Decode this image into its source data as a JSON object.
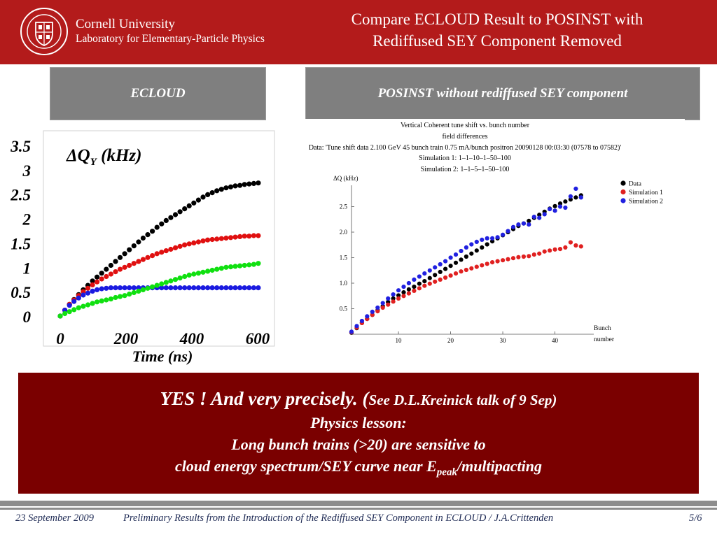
{
  "header": {
    "university": "Cornell University",
    "laboratory": "Laboratory for Elementary-Particle Physics",
    "title_line1": "Compare ECLOUD Result to POSINST with",
    "title_line2": "Rediffused SEY Component Removed",
    "brand_color": "#b31b1b"
  },
  "panels": {
    "left_label": "ECLOUD",
    "right_label": "POSINST without  rediffused SEY component"
  },
  "conclusion": {
    "line1_main": "YES !     And very precisely. (",
    "line1_ref": "See D.L.Kreinick talk of 9 Sep)",
    "line2": "Physics lesson:",
    "line3": "Long bunch trains (>20) are  sensitive to",
    "line4_pre": "cloud energy spectrum/SEY curve near E",
    "line4_sub": "peak",
    "line4_post": "/multipacting",
    "bg_color": "#7a0000"
  },
  "footer": {
    "date": "23 September 2009",
    "center": "Preliminary Results from the Introduction of the Rediffused SEY Component in ECLOUD / J.A.Crittenden",
    "page": "5/6"
  },
  "chart_data": [
    {
      "type": "scatter",
      "title": "",
      "ylabel": "ΔQ",
      "ylabel_sub": "Y",
      "ylabel_units": " (kHz)",
      "xlabel": "Time (ns)",
      "xlim": [
        0,
        610
      ],
      "ylim": [
        0,
        3.6
      ],
      "xticks": [
        0,
        200,
        400,
        600
      ],
      "yticks": [
        0,
        0.5,
        1,
        1.5,
        2,
        2.5,
        3,
        3.5
      ],
      "ytick_labels": [
        "0",
        "0.5",
        "1",
        "1.5",
        "2",
        "2.5",
        "3",
        "3.5"
      ],
      "series": [
        {
          "color": "#000000",
          "x": [
            0,
            14,
            28,
            42,
            56,
            70,
            84,
            98,
            112,
            126,
            140,
            154,
            168,
            182,
            196,
            210,
            224,
            238,
            252,
            266,
            280,
            294,
            308,
            322,
            336,
            350,
            364,
            378,
            392,
            406,
            420,
            434,
            448,
            462,
            476,
            490,
            504,
            518,
            532,
            546,
            560,
            574,
            588,
            602
          ],
          "y": [
            0,
            0.12,
            0.24,
            0.34,
            0.44,
            0.54,
            0.63,
            0.72,
            0.8,
            0.88,
            0.96,
            1.04,
            1.12,
            1.2,
            1.28,
            1.36,
            1.44,
            1.52,
            1.6,
            1.67,
            1.74,
            1.82,
            1.89,
            1.96,
            2.02,
            2.08,
            2.14,
            2.2,
            2.26,
            2.32,
            2.38,
            2.44,
            2.49,
            2.53,
            2.57,
            2.6,
            2.63,
            2.65,
            2.67,
            2.68,
            2.7,
            2.71,
            2.72,
            2.73
          ]
        },
        {
          "color": "#e01010",
          "x": [
            0,
            14,
            28,
            42,
            56,
            70,
            84,
            98,
            112,
            126,
            140,
            154,
            168,
            182,
            196,
            210,
            224,
            238,
            252,
            266,
            280,
            294,
            308,
            322,
            336,
            350,
            364,
            378,
            392,
            406,
            420,
            434,
            448,
            462,
            476,
            490,
            504,
            518,
            532,
            546,
            560,
            574,
            588,
            602
          ],
          "y": [
            0,
            0.12,
            0.24,
            0.33,
            0.42,
            0.5,
            0.57,
            0.64,
            0.7,
            0.76,
            0.81,
            0.86,
            0.91,
            0.96,
            1.0,
            1.04,
            1.08,
            1.12,
            1.16,
            1.2,
            1.24,
            1.28,
            1.31,
            1.34,
            1.37,
            1.4,
            1.43,
            1.46,
            1.48,
            1.5,
            1.52,
            1.54,
            1.56,
            1.57,
            1.58,
            1.59,
            1.6,
            1.61,
            1.62,
            1.63,
            1.64,
            1.64,
            1.65,
            1.65
          ]
        },
        {
          "color": "#1a1ae0",
          "x": [
            0,
            14,
            28,
            42,
            56,
            70,
            84,
            98,
            112,
            126,
            140,
            154,
            168,
            182,
            196,
            210,
            224,
            238,
            252,
            266,
            280,
            294,
            308,
            322,
            336,
            350,
            364,
            378,
            392,
            406,
            420,
            434,
            448,
            462,
            476,
            490,
            504,
            518,
            532,
            546,
            560,
            574,
            588,
            602
          ],
          "y": [
            0,
            0.12,
            0.22,
            0.3,
            0.37,
            0.43,
            0.47,
            0.51,
            0.54,
            0.56,
            0.57,
            0.58,
            0.58,
            0.58,
            0.58,
            0.58,
            0.58,
            0.58,
            0.58,
            0.58,
            0.58,
            0.58,
            0.58,
            0.58,
            0.58,
            0.58,
            0.58,
            0.58,
            0.58,
            0.58,
            0.58,
            0.58,
            0.58,
            0.58,
            0.58,
            0.58,
            0.58,
            0.58,
            0.58,
            0.58,
            0.58,
            0.58,
            0.58,
            0.58
          ]
        },
        {
          "color": "#10e010",
          "x": [
            0,
            14,
            28,
            42,
            56,
            70,
            84,
            98,
            112,
            126,
            140,
            154,
            168,
            182,
            196,
            210,
            224,
            238,
            252,
            266,
            280,
            294,
            308,
            322,
            336,
            350,
            364,
            378,
            392,
            406,
            420,
            434,
            448,
            462,
            476,
            490,
            504,
            518,
            532,
            546,
            560,
            574,
            588,
            602
          ],
          "y": [
            0,
            0.05,
            0.09,
            0.13,
            0.17,
            0.2,
            0.23,
            0.26,
            0.29,
            0.31,
            0.33,
            0.35,
            0.38,
            0.4,
            0.42,
            0.45,
            0.48,
            0.51,
            0.54,
            0.57,
            0.6,
            0.63,
            0.66,
            0.69,
            0.72,
            0.75,
            0.78,
            0.81,
            0.84,
            0.86,
            0.88,
            0.9,
            0.92,
            0.94,
            0.96,
            0.98,
            1.0,
            1.01,
            1.02,
            1.03,
            1.04,
            1.05,
            1.06,
            1.08
          ]
        }
      ]
    },
    {
      "type": "scatter",
      "title": "Vertical Coherent tune shift vs. bunch number",
      "subtitle": "field differences",
      "data_line": "Data: 'Tune shift data 2.100 GeV  45 bunch train  0.75 mA/bunch positron 20090128 00:03:30 (07578 to 07582)'",
      "sim1_line": "Simulation 1: 1–1–10–1–50–100",
      "sim2_line": "Simulation 2: 1–1–5–1–50–100",
      "ylabel": "ΔQ (kHz)",
      "xlabel_line1": "Bunch",
      "xlabel_line2": "number",
      "xlim": [
        0,
        46
      ],
      "ylim": [
        0,
        2.8
      ],
      "xticks": [
        10,
        20,
        30,
        40
      ],
      "yticks": [
        0.5,
        1.0,
        1.5,
        2.0,
        2.5
      ],
      "ytick_labels": [
        "0.5",
        "1.0",
        "1.5",
        "2.0",
        "2.5"
      ],
      "legend_position": "top-right",
      "series": [
        {
          "name": "Data",
          "color": "#000000",
          "x": [
            1,
            2,
            3,
            4,
            5,
            6,
            7,
            8,
            9,
            10,
            11,
            12,
            13,
            14,
            15,
            16,
            17,
            18,
            19,
            20,
            21,
            22,
            23,
            24,
            25,
            26,
            27,
            28,
            29,
            30,
            31,
            32,
            33,
            34,
            35,
            36,
            37,
            38,
            39,
            40,
            41,
            42,
            43,
            44,
            45
          ],
          "y": [
            0.03,
            0.12,
            0.22,
            0.3,
            0.38,
            0.47,
            0.55,
            0.63,
            0.7,
            0.76,
            0.82,
            0.88,
            0.93,
            0.99,
            1.04,
            1.1,
            1.16,
            1.22,
            1.28,
            1.34,
            1.4,
            1.46,
            1.52,
            1.58,
            1.64,
            1.7,
            1.76,
            1.82,
            1.88,
            1.94,
            2.0,
            2.06,
            2.12,
            2.17,
            2.22,
            2.28,
            2.34,
            2.4,
            2.46,
            2.51,
            2.56,
            2.6,
            2.64,
            2.68,
            2.72
          ]
        },
        {
          "name": "Simulation 1",
          "color": "#e02020",
          "x": [
            1,
            2,
            3,
            4,
            5,
            6,
            7,
            8,
            9,
            10,
            11,
            12,
            13,
            14,
            15,
            16,
            17,
            18,
            19,
            20,
            21,
            22,
            23,
            24,
            25,
            26,
            27,
            28,
            29,
            30,
            31,
            32,
            33,
            34,
            35,
            36,
            37,
            38,
            39,
            40,
            41,
            42,
            43,
            44,
            45
          ],
          "y": [
            0.04,
            0.13,
            0.22,
            0.3,
            0.38,
            0.45,
            0.52,
            0.58,
            0.64,
            0.7,
            0.75,
            0.8,
            0.85,
            0.9,
            0.95,
            0.99,
            1.03,
            1.07,
            1.11,
            1.15,
            1.19,
            1.23,
            1.26,
            1.29,
            1.32,
            1.35,
            1.38,
            1.41,
            1.43,
            1.45,
            1.47,
            1.49,
            1.51,
            1.52,
            1.53,
            1.56,
            1.58,
            1.62,
            1.64,
            1.66,
            1.67,
            1.7,
            1.8,
            1.74,
            1.72
          ]
        },
        {
          "name": "Simulation 2",
          "color": "#2020e0",
          "x": [
            1,
            2,
            3,
            4,
            5,
            6,
            7,
            8,
            9,
            10,
            11,
            12,
            13,
            14,
            15,
            16,
            17,
            18,
            19,
            20,
            21,
            22,
            23,
            24,
            25,
            26,
            27,
            28,
            29,
            30,
            31,
            32,
            33,
            34,
            35,
            36,
            37,
            38,
            39,
            40,
            41,
            42,
            43,
            44,
            45
          ],
          "y": [
            0.05,
            0.16,
            0.26,
            0.35,
            0.44,
            0.52,
            0.61,
            0.7,
            0.78,
            0.86,
            0.93,
            1.0,
            1.07,
            1.13,
            1.19,
            1.25,
            1.31,
            1.37,
            1.43,
            1.5,
            1.56,
            1.63,
            1.7,
            1.76,
            1.81,
            1.85,
            1.88,
            1.88,
            1.9,
            1.95,
            2.02,
            2.1,
            2.15,
            2.17,
            2.15,
            2.3,
            2.28,
            2.35,
            2.45,
            2.42,
            2.5,
            2.48,
            2.7,
            2.85,
            2.68
          ]
        }
      ]
    }
  ]
}
